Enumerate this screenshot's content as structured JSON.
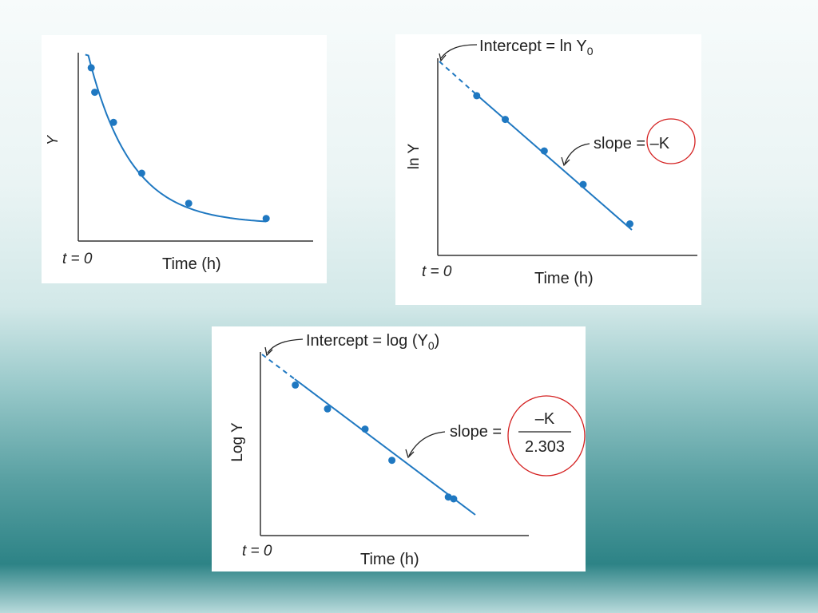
{
  "chart_data": [
    {
      "type": "scatter",
      "title": "",
      "xlabel": "Time (h)",
      "ylabel": "Y",
      "origin_label": "t = 0",
      "axes": {
        "x_range": [
          0,
          10
        ],
        "y_range": [
          0,
          10
        ]
      },
      "fit": "exponential decay curve",
      "points": [
        {
          "x": 0.55,
          "y": 9.2
        },
        {
          "x": 0.7,
          "y": 7.9
        },
        {
          "x": 1.5,
          "y": 6.3
        },
        {
          "x": 2.7,
          "y": 3.6
        },
        {
          "x": 4.7,
          "y": 2.0
        },
        {
          "x": 8.0,
          "y": 1.2
        }
      ],
      "colors": {
        "series": "#1f78c1",
        "axis": "#333333"
      }
    },
    {
      "type": "scatter",
      "title": "",
      "xlabel": "Time (h)",
      "ylabel": "ln Y",
      "origin_label": "t = 0",
      "axes": {
        "x_range": [
          0,
          10
        ],
        "y_range": [
          0,
          10
        ]
      },
      "fit": "straight line with dashed extrapolation to y-axis",
      "intercept_label": "Intercept = ln Y",
      "intercept_sub": "0",
      "slope_label": "slope = –K",
      "points": [
        {
          "x": 1.5,
          "y": 8.1
        },
        {
          "x": 2.6,
          "y": 6.9
        },
        {
          "x": 4.1,
          "y": 5.3
        },
        {
          "x": 5.6,
          "y": 3.6
        },
        {
          "x": 7.4,
          "y": 1.6
        }
      ],
      "colors": {
        "series": "#1f78c1",
        "axis": "#333333",
        "highlight": "#d42020"
      }
    },
    {
      "type": "scatter",
      "title": "",
      "xlabel": "Time (h)",
      "ylabel": "Log Y",
      "origin_label": "t = 0",
      "axes": {
        "x_range": [
          0,
          10
        ],
        "y_range": [
          0,
          10
        ]
      },
      "fit": "straight line with dashed extrapolation to y-axis",
      "intercept_label": "Intercept = log (Y",
      "intercept_sub": "0",
      "intercept_close": ")",
      "slope_label": "slope =",
      "slope_numerator": "–K",
      "slope_denominator": "2.303",
      "points": [
        {
          "x": 1.3,
          "y": 8.2
        },
        {
          "x": 2.5,
          "y": 6.9
        },
        {
          "x": 3.9,
          "y": 5.8
        },
        {
          "x": 4.9,
          "y": 4.1
        },
        {
          "x": 7.0,
          "y": 2.1
        },
        {
          "x": 7.2,
          "y": 2.0
        }
      ],
      "colors": {
        "series": "#1f78c1",
        "axis": "#333333",
        "highlight": "#d42020"
      }
    }
  ]
}
